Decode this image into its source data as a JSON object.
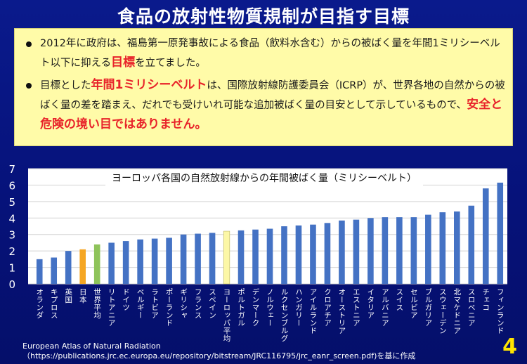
{
  "title": "食品の放射性物質規制が目指す目標",
  "notes": {
    "bullet1": {
      "pre": "2012年に政府は、福島第一原発事故による食品（飲料水含む）からの被ばく量を年間1ミリシーベルト以下に抑える",
      "highlight": "目標",
      "post": "を立てました。"
    },
    "bullet2": {
      "pre": "目標とした",
      "highlight1": "年間1ミリシーベルト",
      "mid": "は、国際放射線防護委員会（ICRP）が、世界各地の自然からの被ばく量の差を踏まえ、だれでも受けいれ可能な追加被ばく量の目安として示しているもので、",
      "highlight2": "安全と危険の境い目ではありません。"
    }
  },
  "colors": {
    "bar": "#4472c4",
    "japan": "#f5a623",
    "world": "#8ec35a",
    "europe": "#fcf7a6",
    "accent": "#e8232a"
  },
  "chart_data": {
    "type": "bar",
    "title": "ヨーロッパ各国の自然放射線からの年間被ばく量（ミリシーベルト）",
    "ylim": [
      0,
      7
    ],
    "yticks": [
      0,
      1,
      2,
      3,
      4,
      5,
      6,
      7
    ],
    "grid": true,
    "categories": [
      "オランダ",
      "キプロス",
      "英国",
      "日本",
      "世界平均",
      "リトアニア",
      "ドイツ",
      "ベルギー",
      "ラトビア",
      "ポーランド",
      "ギリシャ",
      "フランス",
      "スペイン",
      "ヨーロッパ平均",
      "ポルトガル",
      "デンマーク",
      "ノルウェー",
      "ルクセンブルグ",
      "ハンガリー",
      "アイルランド",
      "クロアチア",
      "オーストリア",
      "エストニア",
      "イタリア",
      "アルバニア",
      "スイス",
      "セルビア",
      "ブルガリア",
      "スウェーデン",
      "北マケドニア",
      "スロベニア",
      "チェコ",
      "フィンランド"
    ],
    "values": [
      1.5,
      1.6,
      2.0,
      2.1,
      2.4,
      2.5,
      2.6,
      2.7,
      2.75,
      2.8,
      3.0,
      3.05,
      3.1,
      3.2,
      3.25,
      3.3,
      3.35,
      3.5,
      3.55,
      3.6,
      3.7,
      3.85,
      3.9,
      4.0,
      4.05,
      4.05,
      4.05,
      4.2,
      4.35,
      4.4,
      4.75,
      5.8,
      6.15
    ],
    "highlight": {
      "日本": "japan",
      "世界平均": "world",
      "ヨーロッパ平均": "europe"
    }
  },
  "source": {
    "line1": "European Atlas of Natural Radiation",
    "line2": "（https://publications.jrc.ec.europa.eu/repository/bitstream/JRC116795/jrc_eanr_screen.pdf)を基に作成"
  },
  "page_number": "4"
}
